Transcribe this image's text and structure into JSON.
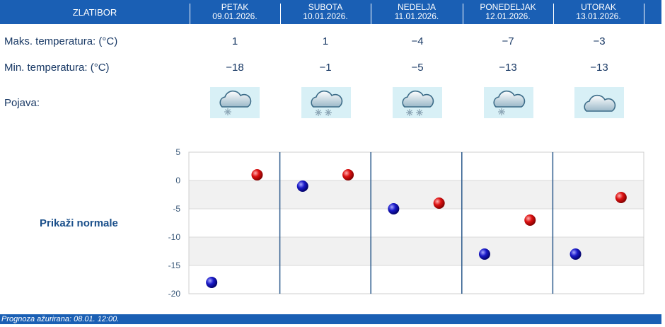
{
  "location": "ZLATIBOR",
  "days": [
    {
      "name": "PETAK",
      "date": "09.01.2026.",
      "max": "1",
      "min": "−18",
      "icon": "snow-cloud-icon"
    },
    {
      "name": "SUBOTA",
      "date": "10.01.2026.",
      "max": "1",
      "min": "−1",
      "icon": "heavy-snow-cloud-icon"
    },
    {
      "name": "NEDELJA",
      "date": "11.01.2026.",
      "max": "−4",
      "min": "−5",
      "icon": "heavy-snow-cloud-icon"
    },
    {
      "name": "PONEDELJAK",
      "date": "12.01.2026.",
      "max": "−7",
      "min": "−13",
      "icon": "snow-cloud-icon"
    },
    {
      "name": "UTORAK",
      "date": "13.01.2026.",
      "max": "−3",
      "min": "−13",
      "icon": "cloud-icon"
    }
  ],
  "labels": {
    "max": "Maks. temperatura: (°C)",
    "min": "Min. temperatura: (°C)",
    "phenomenon": "Pojava:"
  },
  "normals_link": "Prikaži normale",
  "footer": "Prognoza ažurirana:  08.01. 12:00.",
  "colors": {
    "header": "#1a5fb4",
    "max_marker": "#cc0000",
    "min_marker": "#1a1aa8",
    "icon_bg": "#d8f0f6"
  },
  "chart_data": {
    "type": "scatter",
    "categories": [
      "PETAK",
      "SUBOTA",
      "NEDELJA",
      "PONEDELJAK",
      "UTORAK"
    ],
    "series": [
      {
        "key": "min",
        "values": [
          -18,
          -1,
          -5,
          -13,
          -13
        ]
      },
      {
        "key": "max",
        "values": [
          1,
          1,
          -4,
          -7,
          -3
        ]
      }
    ],
    "ylim": [
      -20,
      5
    ],
    "yticks": [
      "5",
      "0",
      "-5",
      "-10",
      "-15",
      "-20"
    ],
    "grid": true
  }
}
